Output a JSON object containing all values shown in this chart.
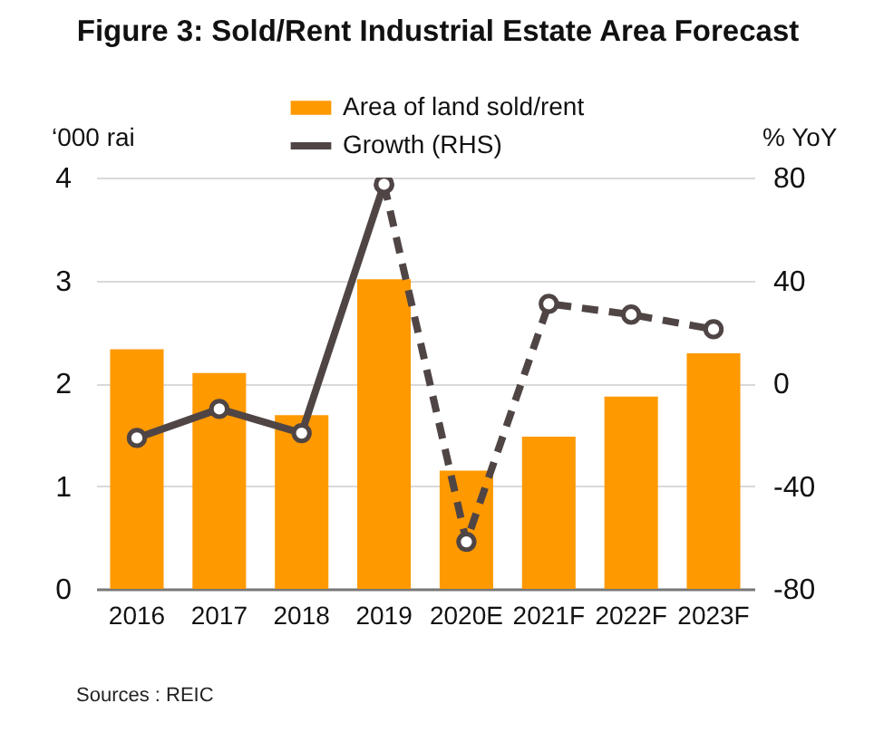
{
  "chart_data": {
    "type": "bar",
    "title": "Figure 3: Sold/Rent Industrial Estate Area Forecast",
    "ylabel": "‘000 rai",
    "y2label": "% YoY",
    "annotations": [
      "Sources : REIC"
    ],
    "categories": [
      "2016",
      "2017",
      "2018",
      "2019",
      "2020E",
      "2021F",
      "2022F",
      "2023F"
    ],
    "series": [
      {
        "name": "Area of land sold/rent",
        "color": "#ff9900",
        "values": [
          2.33,
          2.1,
          1.69,
          3.01,
          1.15,
          1.48,
          1.87,
          2.29
        ]
      },
      {
        "name": "Growth (RHS)",
        "type": "line",
        "axis": "y2",
        "color": "#504545",
        "line_style": "solid",
        "values": [
          -21.3,
          -10,
          -19.4,
          77.4,
          null,
          null,
          null,
          null
        ]
      },
      {
        "type": "line",
        "axis": "y2",
        "color": "#504545",
        "line_style": "dashed",
        "values": [
          null,
          null,
          null,
          77.4,
          -61.7,
          30.9,
          26.7,
          21
        ]
      }
    ],
    "ylim": [
      0,
      4
    ],
    "yticks": [
      0,
      1,
      2,
      3,
      4
    ],
    "y2lim": [
      -80,
      80
    ],
    "y2ticks": [
      -80,
      -40,
      0,
      40,
      80
    ],
    "grid": "y",
    "legend": "top",
    "marker": "circle"
  }
}
